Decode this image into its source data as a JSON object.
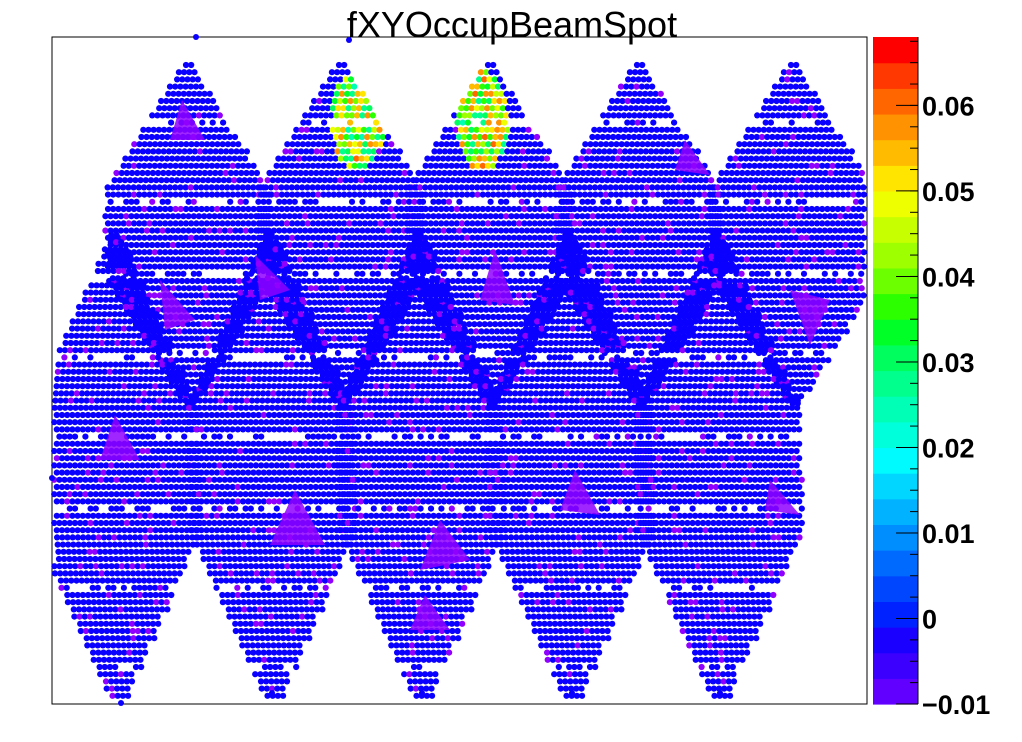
{
  "chart_data": {
    "type": "heatmap",
    "title": "fXYOccupBeamSpot",
    "colorbar": {
      "zlim": [
        -0.01,
        0.068
      ],
      "ticks": [
        -0.01,
        0,
        0.01,
        0.02,
        0.03,
        0.04,
        0.05,
        0.06
      ],
      "tick_labels": [
        "−0.01",
        "0",
        "0.01",
        "0.02",
        "0.03",
        "0.04",
        "0.05",
        "0.06"
      ],
      "palette": [
        "#6200ff",
        "#3c00ff",
        "#1a00ff",
        "#0022ff",
        "#0046ff",
        "#006aff",
        "#008eff",
        "#00b2ff",
        "#00d6ff",
        "#00fbff",
        "#00ffdb",
        "#00ffb6",
        "#00ff8d",
        "#00ff5e",
        "#00ff26",
        "#2bff00",
        "#6cff00",
        "#9dff00",
        "#c8ff00",
        "#eeff00",
        "#ffe500",
        "#ffbb00",
        "#ff9200",
        "#ff6600",
        "#ff3700",
        "#ff0000"
      ]
    },
    "modules": {
      "grid_shape": "5 columns x 2 rows of hexagonal sensor modules (triangular lattice)",
      "dominant_value": -0.004,
      "elevated_value": -0.008,
      "hot_spots": [
        {
          "module": "top row, column 2",
          "value_range": [
            0.025,
            0.06
          ]
        },
        {
          "module": "top row, column 3",
          "value_range": [
            0.025,
            0.06
          ]
        }
      ]
    },
    "colors": {
      "dominant": "#0a00ff",
      "elevated": "#8f00ff",
      "frame": "#000000"
    }
  }
}
